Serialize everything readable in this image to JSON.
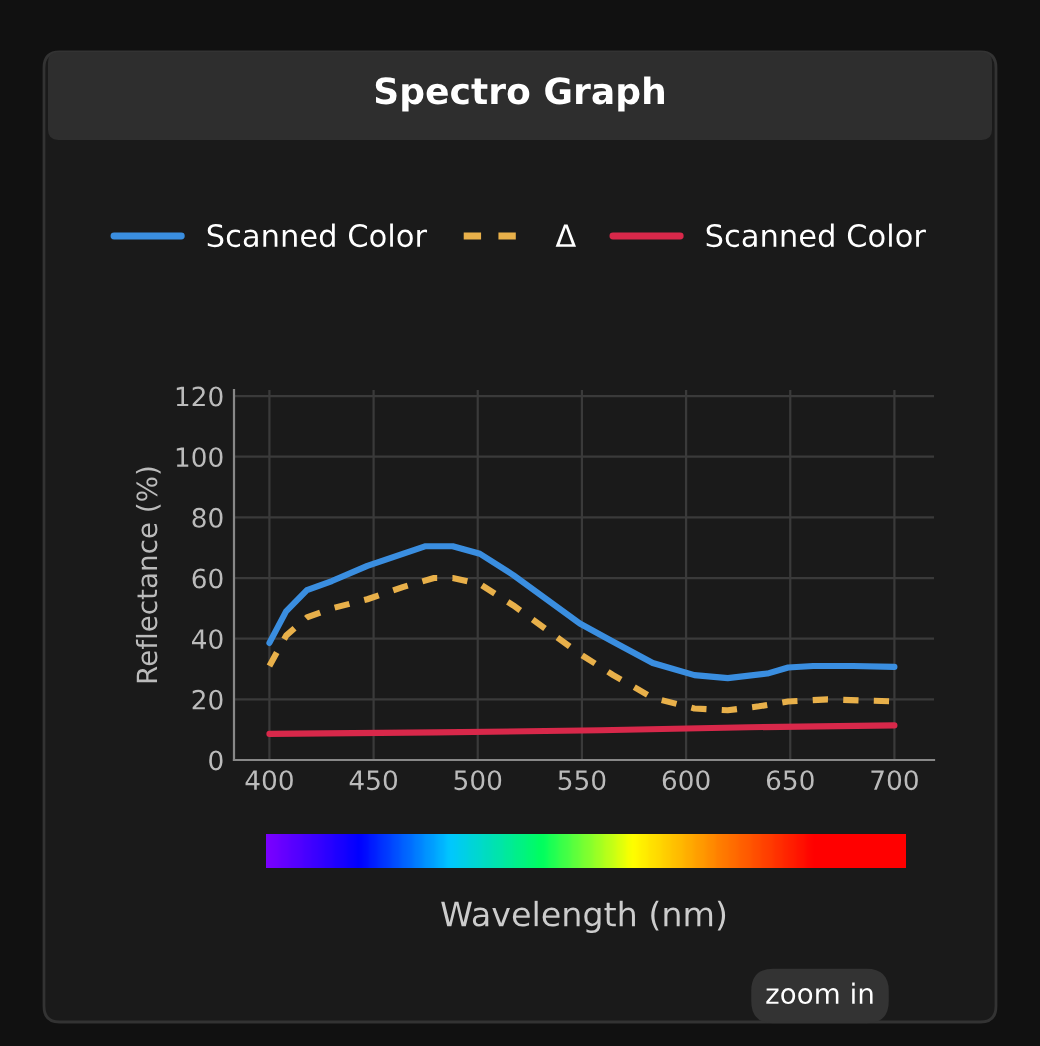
{
  "chart_data": {
    "type": "line",
    "title": "Spectro Graph",
    "xlabel": "Wavelength (nm)",
    "ylabel": "Reflectance (%)",
    "series": [
      {
        "name": "Scanned Color",
        "color": "#3a8ee0",
        "line_style": "solid",
        "x": [
          400,
          408,
          418,
          430,
          447,
          464,
          475,
          488,
          501,
          517,
          533,
          549,
          565,
          584,
          604,
          620,
          639,
          649,
          661,
          680,
          700
        ],
        "values": [
          38.6,
          49,
          56,
          59,
          64,
          68,
          70.5,
          70.5,
          68,
          61,
          53,
          45,
          39,
          32,
          28,
          27,
          28.5,
          30.5,
          31,
          31,
          30.7
        ]
      },
      {
        "name": "Δ",
        "color": "#e8b04a",
        "line_style": "dashed",
        "x": [
          400,
          408,
          418,
          430,
          447,
          464,
          479,
          488,
          501,
          517,
          533,
          549,
          565,
          584,
          604,
          620,
          635,
          649,
          668,
          700
        ],
        "values": [
          31,
          41,
          47,
          50,
          53,
          57,
          60,
          60,
          58,
          51,
          43,
          35,
          28,
          20.5,
          17,
          16.4,
          17.7,
          19.3,
          20,
          19.3
        ]
      },
      {
        "name": "Scanned Color",
        "color": "#d8284a",
        "line_style": "solid",
        "x": [
          400,
          480,
          559,
          630,
          700
        ],
        "values": [
          8.6,
          9.1,
          9.8,
          10.8,
          11.4
        ]
      }
    ],
    "xlim": [
      383,
      719
    ],
    "ylim": [
      0,
      122
    ],
    "xticks": [
      400,
      450,
      500,
      550,
      600,
      650,
      700
    ],
    "yticks": [
      0,
      20,
      40,
      60,
      80,
      100,
      120
    ],
    "grid": true,
    "legend": "top",
    "marker": "none",
    "annotations": [
      "zoom in"
    ]
  }
}
